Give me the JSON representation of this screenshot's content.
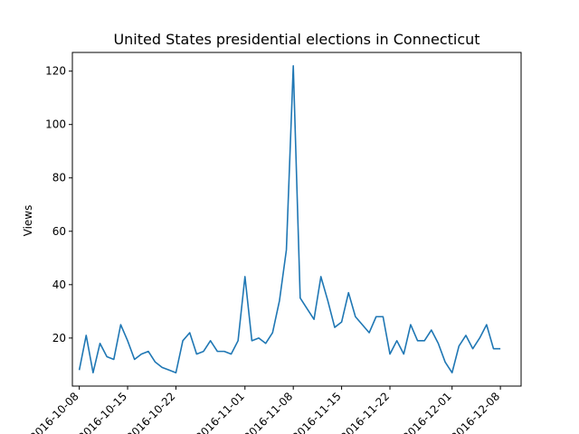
{
  "chart_data": {
    "type": "line",
    "title": "United States presidential elections in Connecticut",
    "xlabel": "",
    "ylabel": "Views",
    "ylim": [
      2,
      127
    ],
    "xlim": [
      "2016-10-07",
      "2016-12-11"
    ],
    "grid": false,
    "color": "#1f77b4",
    "x_ticks": [
      "2016-10-08",
      "2016-10-15",
      "2016-10-22",
      "2016-11-01",
      "2016-11-08",
      "2016-11-15",
      "2016-11-22",
      "2016-12-01",
      "2016-12-08"
    ],
    "y_ticks": [
      20,
      40,
      60,
      80,
      100,
      120
    ],
    "x": [
      "2016-10-08",
      "2016-10-09",
      "2016-10-10",
      "2016-10-11",
      "2016-10-12",
      "2016-10-13",
      "2016-10-14",
      "2016-10-15",
      "2016-10-16",
      "2016-10-17",
      "2016-10-18",
      "2016-10-19",
      "2016-10-20",
      "2016-10-21",
      "2016-10-22",
      "2016-10-23",
      "2016-10-24",
      "2016-10-25",
      "2016-10-26",
      "2016-10-27",
      "2016-10-28",
      "2016-10-29",
      "2016-10-30",
      "2016-10-31",
      "2016-11-01",
      "2016-11-02",
      "2016-11-03",
      "2016-11-04",
      "2016-11-05",
      "2016-11-06",
      "2016-11-07",
      "2016-11-08",
      "2016-11-09",
      "2016-11-10",
      "2016-11-11",
      "2016-11-12",
      "2016-11-13",
      "2016-11-14",
      "2016-11-15",
      "2016-11-16",
      "2016-11-17",
      "2016-11-18",
      "2016-11-19",
      "2016-11-20",
      "2016-11-21",
      "2016-11-22",
      "2016-11-23",
      "2016-11-24",
      "2016-11-25",
      "2016-11-26",
      "2016-11-27",
      "2016-11-28",
      "2016-11-29",
      "2016-11-30",
      "2016-12-01",
      "2016-12-02",
      "2016-12-03",
      "2016-12-04",
      "2016-12-05",
      "2016-12-06",
      "2016-12-07",
      "2016-12-08"
    ],
    "values": [
      8,
      21,
      7,
      18,
      13,
      12,
      25,
      19,
      12,
      14,
      15,
      11,
      9,
      8,
      7,
      19,
      22,
      14,
      15,
      19,
      15,
      15,
      14,
      19,
      43,
      19,
      20,
      18,
      22,
      34,
      53,
      122,
      35,
      31,
      27,
      43,
      34,
      24,
      26,
      37,
      28,
      25,
      22,
      28,
      28,
      14,
      19,
      14,
      25,
      19,
      19,
      23,
      18,
      11,
      7,
      17,
      21,
      16,
      20,
      25,
      16,
      16
    ]
  }
}
